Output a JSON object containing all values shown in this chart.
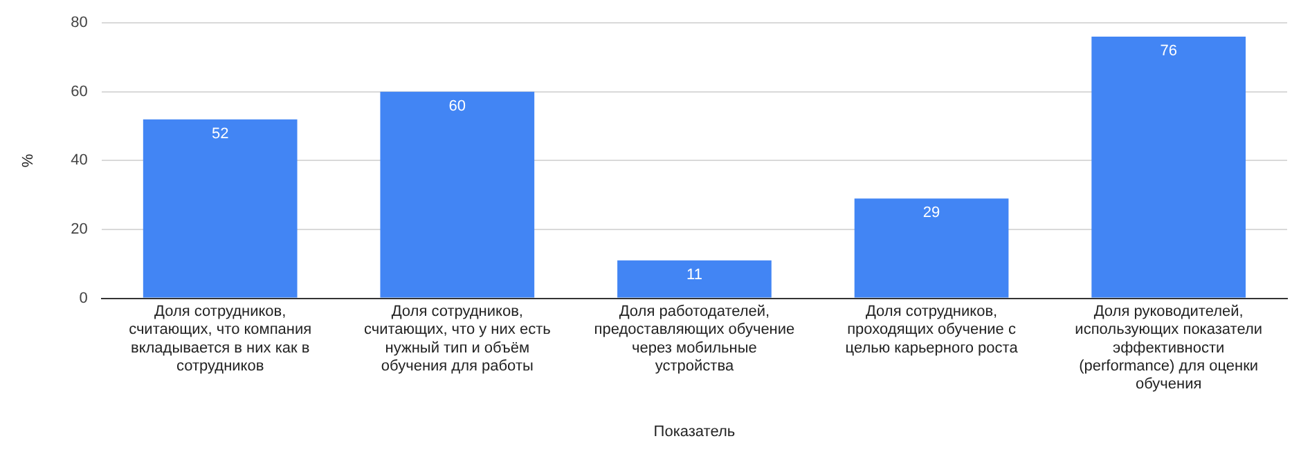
{
  "chart_data": {
    "type": "bar",
    "xlabel": "Показатель",
    "ylabel": "%",
    "categories": [
      "Доля сотрудников, считающих, что компания вкладывается в них как в сотрудников",
      "Доля сотрудников, считающих, что у них есть нужный тип и объём обучения для работы",
      "Доля работодателей, предоставляющих обучение через мобильные устройства",
      "Доля сотрудников, проходящих обучение с целью карьерного роста",
      "Доля руководителей, использующих показатели эффективности (performance) для оценки обучения"
    ],
    "values": [
      52,
      60,
      11,
      29,
      76
    ],
    "color": "#4285f4",
    "ylim": [
      0,
      80
    ],
    "yticks": [
      0,
      20,
      40,
      60,
      80
    ],
    "grid": "y",
    "data_labels": true
  }
}
